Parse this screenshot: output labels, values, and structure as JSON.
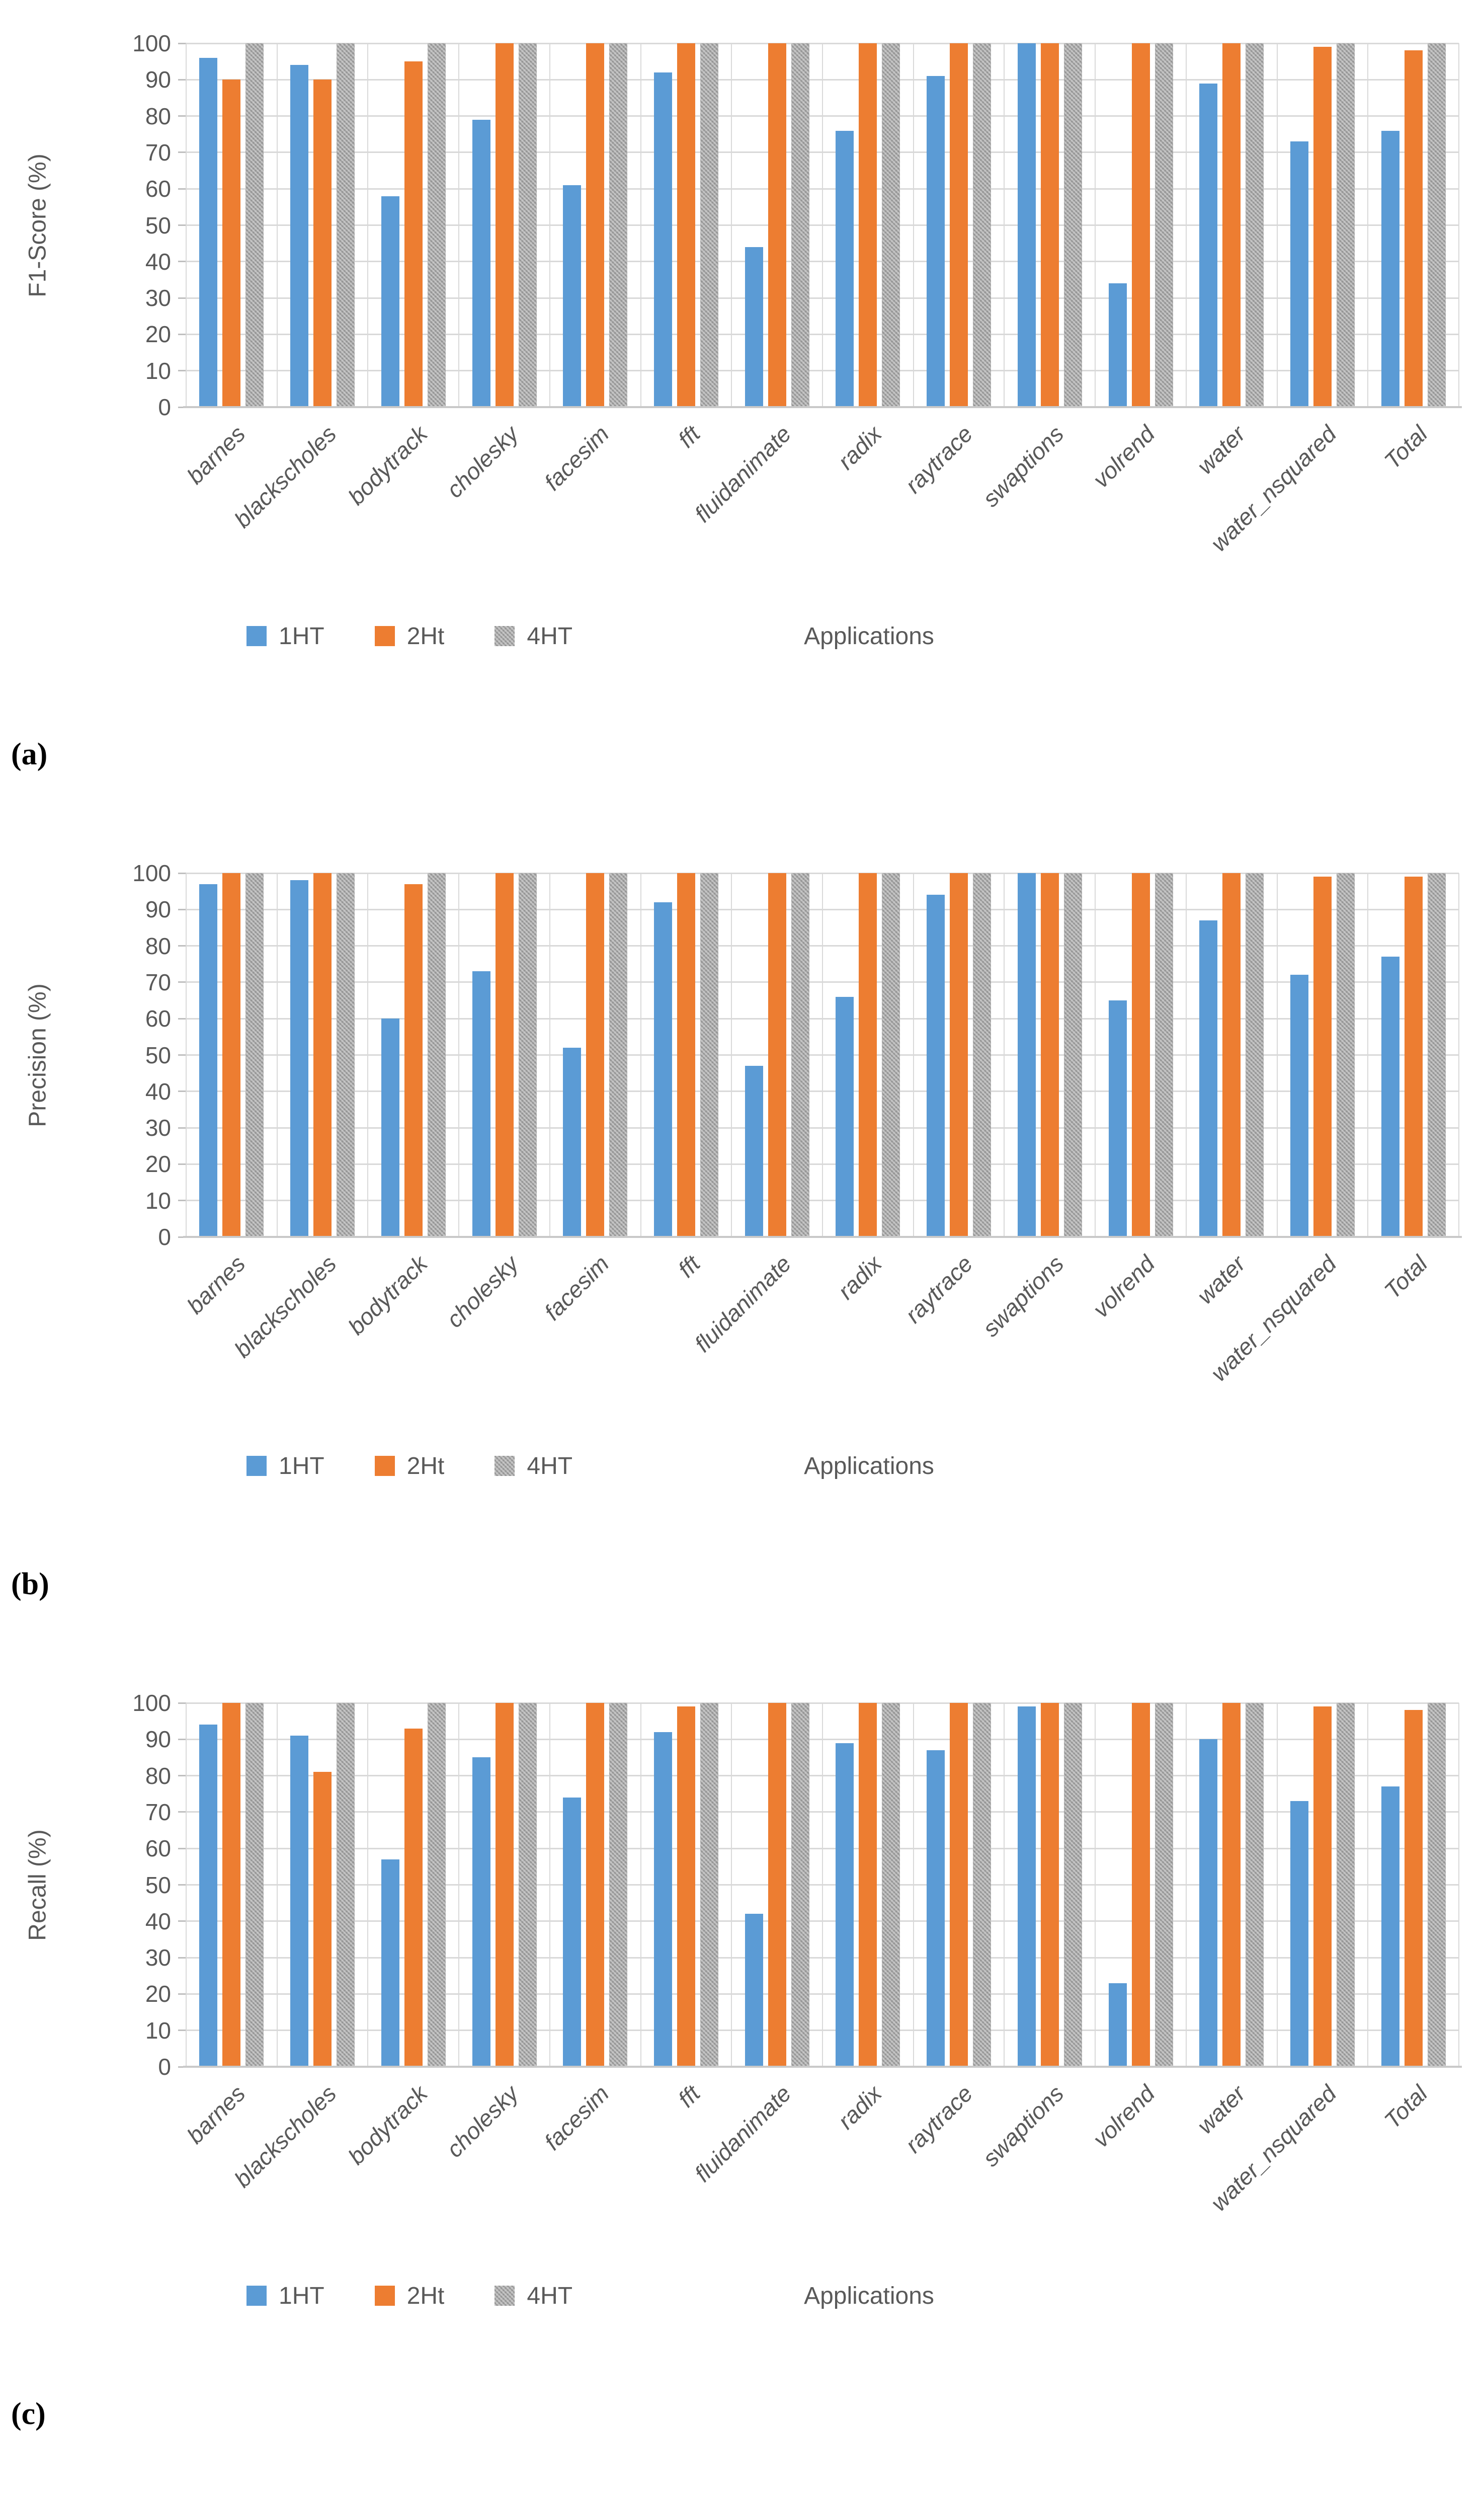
{
  "colors": {
    "series_1HT": "#5B9BD5",
    "series_2Ht": "#ED7D31",
    "series_4HT": "#A5A5A5",
    "axis_text": "#595959",
    "gridline": "#D9D9D9",
    "axis_line": "#C9C9C9",
    "panel_letter": "#000000"
  },
  "x_axis_title": "Applications",
  "yticks": [
    100,
    90,
    80,
    70,
    60,
    50,
    40,
    30,
    20,
    10,
    0
  ],
  "chart_data": [
    {
      "type": "bar",
      "panel_letter": "(a)",
      "ylabel": "F1-Score (%)",
      "xlabel": "Applications",
      "ylim": [
        0,
        100
      ],
      "ytick_step": 10,
      "grid": true,
      "legend_position": "bottom",
      "legend_entries": [
        "1HT",
        "2Ht",
        "4HT"
      ],
      "categories": [
        "barnes",
        "blackscholes",
        "bodytrack",
        "cholesky",
        "facesim",
        "fft",
        "fluidanimate",
        "radix",
        "raytrace",
        "swaptions",
        "volrend",
        "water",
        "water_nsquared",
        "Total"
      ],
      "series": [
        {
          "name": "1HT",
          "color": "#5B9BD5",
          "pattern": false,
          "values": [
            96,
            94,
            58,
            79,
            61,
            92,
            44,
            76,
            91,
            100,
            34,
            89,
            73,
            76
          ]
        },
        {
          "name": "2Ht",
          "color": "#ED7D31",
          "pattern": false,
          "values": [
            90,
            90,
            95,
            100,
            100,
            100,
            100,
            100,
            100,
            100,
            100,
            100,
            99,
            98
          ]
        },
        {
          "name": "4HT",
          "color": "#A5A5A5",
          "pattern": true,
          "values": [
            100,
            100,
            100,
            100,
            100,
            100,
            100,
            100,
            100,
            100,
            100,
            100,
            100,
            100
          ]
        }
      ]
    },
    {
      "type": "bar",
      "panel_letter": "(b)",
      "ylabel": "Precision (%)",
      "xlabel": "Applications",
      "ylim": [
        0,
        100
      ],
      "ytick_step": 10,
      "grid": true,
      "legend_position": "bottom",
      "legend_entries": [
        "1HT",
        "2Ht",
        "4HT"
      ],
      "categories": [
        "barnes",
        "blackscholes",
        "bodytrack",
        "cholesky",
        "facesim",
        "fft",
        "fluidanimate",
        "radix",
        "raytrace",
        "swaptions",
        "volrend",
        "water",
        "water_nsquared",
        "Total"
      ],
      "series": [
        {
          "name": "1HT",
          "color": "#5B9BD5",
          "pattern": false,
          "values": [
            97,
            98,
            60,
            73,
            52,
            92,
            47,
            66,
            94,
            100,
            65,
            87,
            72,
            77
          ]
        },
        {
          "name": "2Ht",
          "color": "#ED7D31",
          "pattern": false,
          "values": [
            100,
            100,
            97,
            100,
            100,
            100,
            100,
            100,
            100,
            100,
            100,
            100,
            99,
            99
          ]
        },
        {
          "name": "4HT",
          "color": "#A5A5A5",
          "pattern": true,
          "values": [
            100,
            100,
            100,
            100,
            100,
            100,
            100,
            100,
            100,
            100,
            100,
            100,
            100,
            100
          ]
        }
      ]
    },
    {
      "type": "bar",
      "panel_letter": "(c)",
      "ylabel": "Recall (%)",
      "xlabel": "Applications",
      "ylim": [
        0,
        100
      ],
      "ytick_step": 10,
      "grid": true,
      "legend_position": "bottom",
      "legend_entries": [
        "1HT",
        "2Ht",
        "4HT"
      ],
      "categories": [
        "barnes",
        "blackscholes",
        "bodytrack",
        "cholesky",
        "facesim",
        "fft",
        "fluidanimate",
        "radix",
        "raytrace",
        "swaptions",
        "volrend",
        "water",
        "water_nsquared",
        "Total"
      ],
      "series": [
        {
          "name": "1HT",
          "color": "#5B9BD5",
          "pattern": false,
          "values": [
            94,
            91,
            57,
            85,
            74,
            92,
            42,
            89,
            87,
            99,
            23,
            90,
            73,
            77
          ]
        },
        {
          "name": "2Ht",
          "color": "#ED7D31",
          "pattern": false,
          "values": [
            100,
            81,
            93,
            100,
            100,
            99,
            100,
            100,
            100,
            100,
            100,
            100,
            99,
            98
          ]
        },
        {
          "name": "4HT",
          "color": "#A5A5A5",
          "pattern": true,
          "values": [
            100,
            100,
            100,
            100,
            100,
            100,
            100,
            100,
            100,
            100,
            100,
            100,
            100,
            100
          ]
        }
      ]
    }
  ]
}
